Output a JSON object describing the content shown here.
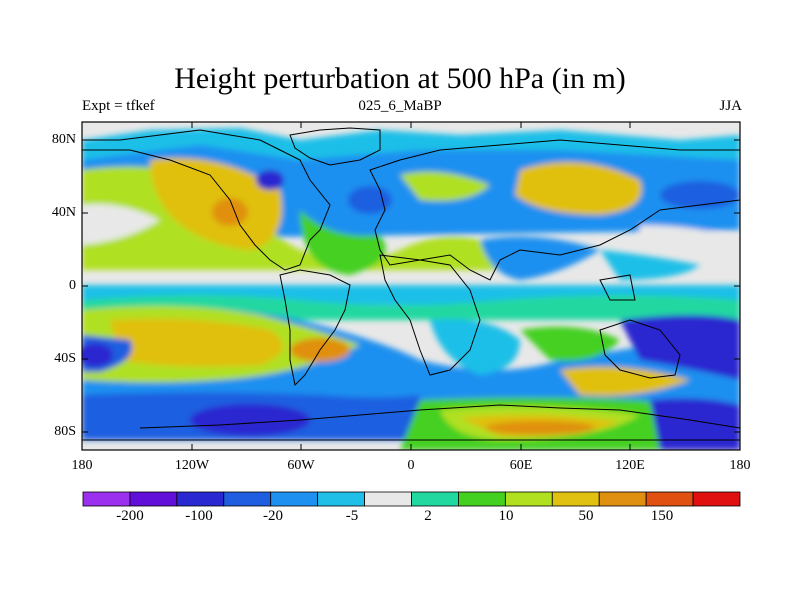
{
  "title": "Height perturbation at 500 hPa (in m)",
  "subtitle_left": "Expt = tfkef",
  "subtitle_center": "025_6_MaBP",
  "subtitle_right": "JJA",
  "lat_labels": [
    "80N",
    "40N",
    "0",
    "40S",
    "80S"
  ],
  "lon_labels": [
    "180",
    "120W",
    "60W",
    "0",
    "60E",
    "120E",
    "180"
  ],
  "colorbar": {
    "colors": [
      "#9b30ef",
      "#6010d8",
      "#2a28d0",
      "#1f5ee0",
      "#1e90f0",
      "#1fbfe8",
      "#e8e8e8",
      "#20d8a0",
      "#44d020",
      "#b0e020",
      "#e0c010",
      "#e09010",
      "#e05010",
      "#e01010"
    ],
    "labels": [
      "-200",
      "-100",
      "-20",
      "-5",
      "2",
      "10",
      "50",
      "150"
    ]
  },
  "colors": {
    "land_outline": "#000000",
    "background": "#e8e8e8"
  }
}
